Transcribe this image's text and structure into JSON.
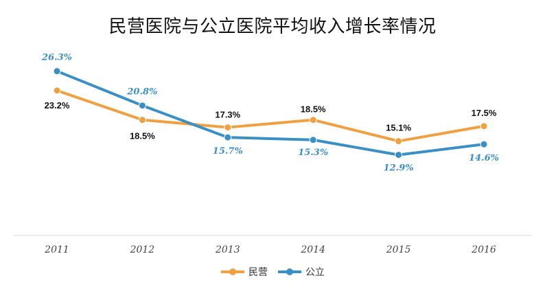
{
  "chart_data": {
    "type": "line",
    "title": "民营医院与公立医院平均收入增长率情况",
    "categories": [
      "2011",
      "2012",
      "2013",
      "2014",
      "2015",
      "2016"
    ],
    "series": [
      {
        "name": "民营",
        "values": [
          23.2,
          18.5,
          17.3,
          18.5,
          15.1,
          17.5
        ],
        "labels": [
          "23.2%",
          "18.5%",
          "17.3%",
          "18.5%",
          "15.1%",
          "17.5%"
        ],
        "color": "#f0a040"
      },
      {
        "name": "公立",
        "values": [
          26.3,
          20.8,
          15.7,
          15.3,
          12.9,
          14.6
        ],
        "labels": [
          "26.3%",
          "20.8%",
          "15.7%",
          "15.3%",
          "12.9%",
          "14.6%"
        ],
        "color": "#3a8fc4"
      }
    ],
    "ylim": [
      0,
      30
    ],
    "grid": false,
    "legend": "bottom"
  }
}
